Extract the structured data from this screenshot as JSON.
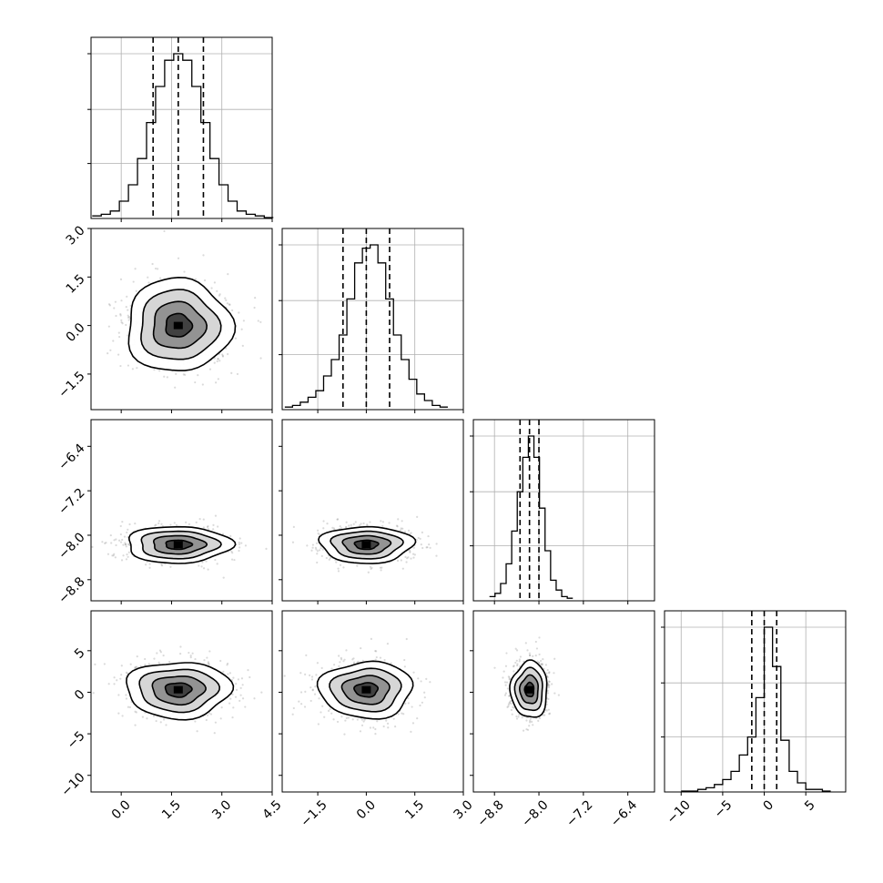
{
  "chart_data": {
    "type": "corner",
    "parameters": [
      {
        "range": [
          -0.9,
          4.5
        ],
        "ticks": [
          0.0,
          1.5,
          3.0,
          4.5
        ],
        "tick_labels": [
          "0.0",
          "1.5",
          "3.0",
          "4.5"
        ],
        "mean": 1.7,
        "std": 0.78,
        "quantiles": [
          0.95,
          1.7,
          2.45
        ]
      },
      {
        "range": [
          -2.6,
          3.0
        ],
        "ticks": [
          -1.5,
          0.0,
          1.5,
          3.0
        ],
        "tick_labels": [
          "−1.5",
          "0.0",
          "1.5",
          "3.0"
        ],
        "mean": 0.0,
        "std": 0.72,
        "quantiles": [
          -0.72,
          0.0,
          0.72
        ]
      },
      {
        "range": [
          -9.18,
          -5.92
        ],
        "ticks": [
          -8.8,
          -8.0,
          -7.2,
          -6.4
        ],
        "tick_labels": [
          "−8.8",
          "−8.0",
          "−7.2",
          "−6.4"
        ],
        "mean": -8.17,
        "std": 0.165,
        "quantiles": [
          -8.34,
          -8.17,
          -8.0
        ]
      },
      {
        "range": [
          -12.0,
          9.8
        ],
        "ticks": [
          -10,
          -5,
          0,
          5
        ],
        "tick_labels": [
          "−10",
          "−5",
          "0",
          "5"
        ],
        "mean": 0.3,
        "std": 1.7,
        "quantiles": [
          -1.5,
          0.0,
          1.5
        ]
      }
    ],
    "histograms": [
      {
        "bins": [
          -0.73,
          -0.46,
          -0.19,
          0.08,
          0.35,
          0.62,
          0.89,
          1.16,
          1.43,
          1.7,
          1.97,
          2.24,
          2.51,
          2.78,
          3.05,
          3.32,
          3.59,
          3.86,
          4.13,
          4.4
        ],
        "counts": [
          0.01,
          0.02,
          0.04,
          0.1,
          0.2,
          0.36,
          0.58,
          0.8,
          0.96,
          1.0,
          0.96,
          0.8,
          0.58,
          0.36,
          0.2,
          0.1,
          0.04,
          0.02,
          0.01,
          0.0
        ]
      },
      {
        "bins": [
          -2.4,
          -2.16,
          -1.92,
          -1.68,
          -1.44,
          -1.2,
          -0.96,
          -0.72,
          -0.48,
          -0.24,
          0.0,
          0.24,
          0.48,
          0.72,
          0.96,
          1.2,
          1.44,
          1.68,
          1.92,
          2.16,
          2.4
        ],
        "counts": [
          0.01,
          0.02,
          0.04,
          0.07,
          0.11,
          0.2,
          0.3,
          0.45,
          0.67,
          0.89,
          0.98,
          1.0,
          0.89,
          0.67,
          0.45,
          0.3,
          0.18,
          0.09,
          0.05,
          0.02,
          0.01
        ]
      },
      {
        "bins": [
          -8.84,
          -8.74,
          -8.64,
          -8.54,
          -8.44,
          -8.34,
          -8.24,
          -8.14,
          -8.04,
          -7.94,
          -7.84,
          -7.74,
          -7.64,
          -7.54,
          -7.44
        ],
        "counts": [
          0.02,
          0.04,
          0.1,
          0.22,
          0.42,
          0.66,
          0.87,
          1.0,
          0.87,
          0.56,
          0.3,
          0.12,
          0.06,
          0.02,
          0.01
        ]
      },
      {
        "bins": [
          -9.5,
          -8.5,
          -7.5,
          -6.5,
          -5.5,
          -4.5,
          -3.5,
          -2.5,
          -1.5,
          -0.5,
          0.5,
          1.5,
          2.5,
          3.5,
          4.5,
          5.5,
          6.5,
          7.5
        ],
        "counts": [
          0.0,
          0.0,
          0.01,
          0.02,
          0.04,
          0.07,
          0.12,
          0.22,
          0.33,
          0.57,
          1.0,
          0.76,
          0.31,
          0.12,
          0.05,
          0.01,
          0.01,
          0.0
        ]
      }
    ],
    "contour_levels_sigma": [
      0.5,
      1.0,
      1.5,
      2.0
    ],
    "grid": true
  }
}
